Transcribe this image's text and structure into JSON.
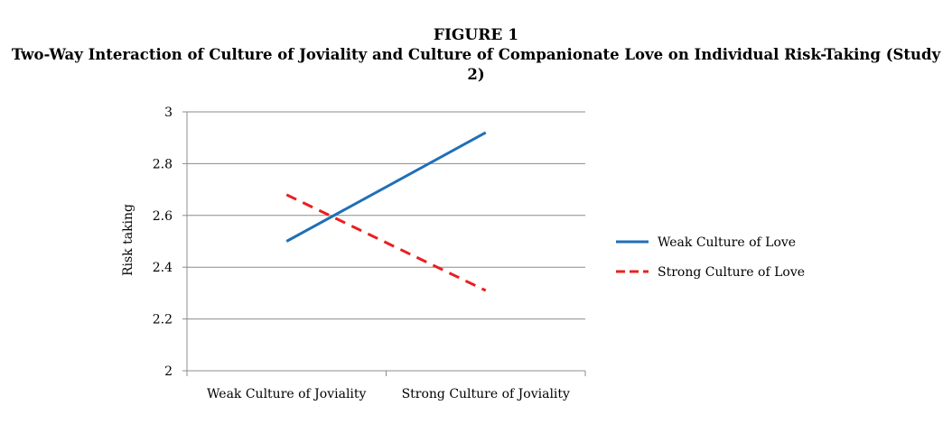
{
  "figure_label": "FIGURE 1",
  "figure_title": "Two-Way Interaction of Culture of Joviality and Culture of Companionate Love on Individual Risk-Taking (Study 2)",
  "chart_data": {
    "type": "line",
    "title": "",
    "xlabel": "",
    "ylabel": "Risk taking",
    "categories": [
      "Weak Culture of Joviality",
      "Strong Culture of Joviality"
    ],
    "ylim": [
      2,
      3
    ],
    "yticks": [
      "2",
      "2.2",
      "2.4",
      "2.6",
      "2.8",
      "3"
    ],
    "grid": true,
    "legend_position": "right",
    "series": [
      {
        "name": "Weak Culture of Love",
        "values": [
          2.5,
          2.92
        ],
        "color": "#1f6fb7",
        "style": "solid"
      },
      {
        "name": "Strong Culture of Love",
        "values": [
          2.68,
          2.31
        ],
        "color": "#e8201f",
        "style": "dashed"
      }
    ]
  }
}
